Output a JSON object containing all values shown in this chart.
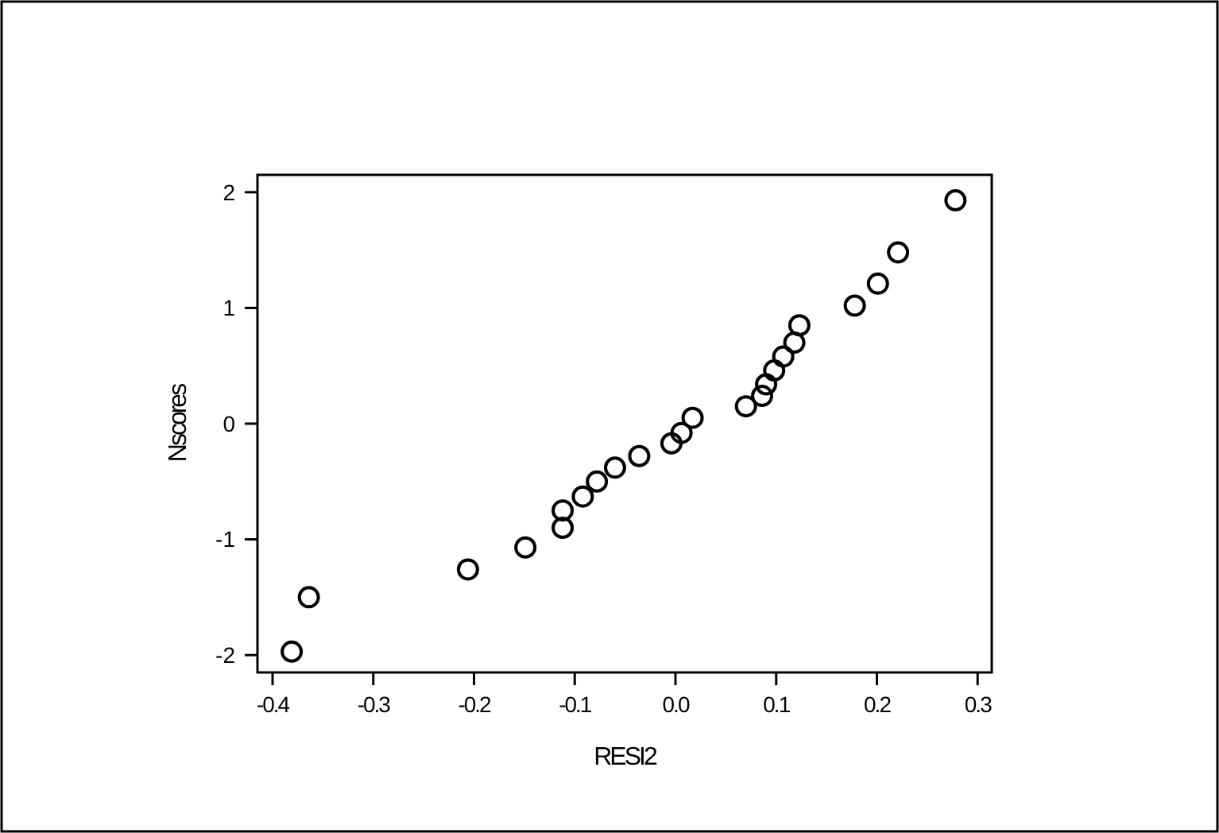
{
  "chart_data": {
    "type": "scatter",
    "xlabel": "RESI2",
    "ylabel": "Nscores",
    "marker": "circle",
    "xlim": [
      -0.415,
      0.314
    ],
    "ylim": [
      -2.15,
      2.15
    ],
    "xticks": [
      {
        "value": -0.4,
        "label": "-0.4"
      },
      {
        "value": -0.3,
        "label": "-0.3"
      },
      {
        "value": -0.2,
        "label": "-0.2"
      },
      {
        "value": -0.1,
        "label": "-0.1"
      },
      {
        "value": 0,
        "label": "0.0"
      },
      {
        "value": 0.1,
        "label": "0.1"
      },
      {
        "value": 0.2,
        "label": "0.2"
      },
      {
        "value": 0.3,
        "label": "0.3"
      }
    ],
    "yticks": [
      -2,
      -1,
      0,
      1,
      2
    ],
    "series": [
      {
        "color": "#000000",
        "x": [
          -0.381,
          -0.364,
          -0.206,
          -0.149,
          -0.112,
          -0.112,
          -0.092,
          -0.078,
          -0.06,
          -0.036,
          -0.004,
          0.006,
          0.017,
          0.07,
          0.086,
          0.09,
          0.098,
          0.107,
          0.118,
          0.123,
          0.178,
          0.201,
          0.221,
          0.278
        ],
        "values": [
          -1.97,
          -1.5,
          -1.26,
          -1.07,
          -0.9,
          -0.75,
          -0.63,
          -0.5,
          -0.38,
          -0.28,
          -0.17,
          -0.08,
          0.05,
          0.15,
          0.24,
          0.34,
          0.46,
          0.58,
          0.7,
          0.85,
          1.02,
          1.21,
          1.48,
          1.93
        ]
      }
    ]
  }
}
